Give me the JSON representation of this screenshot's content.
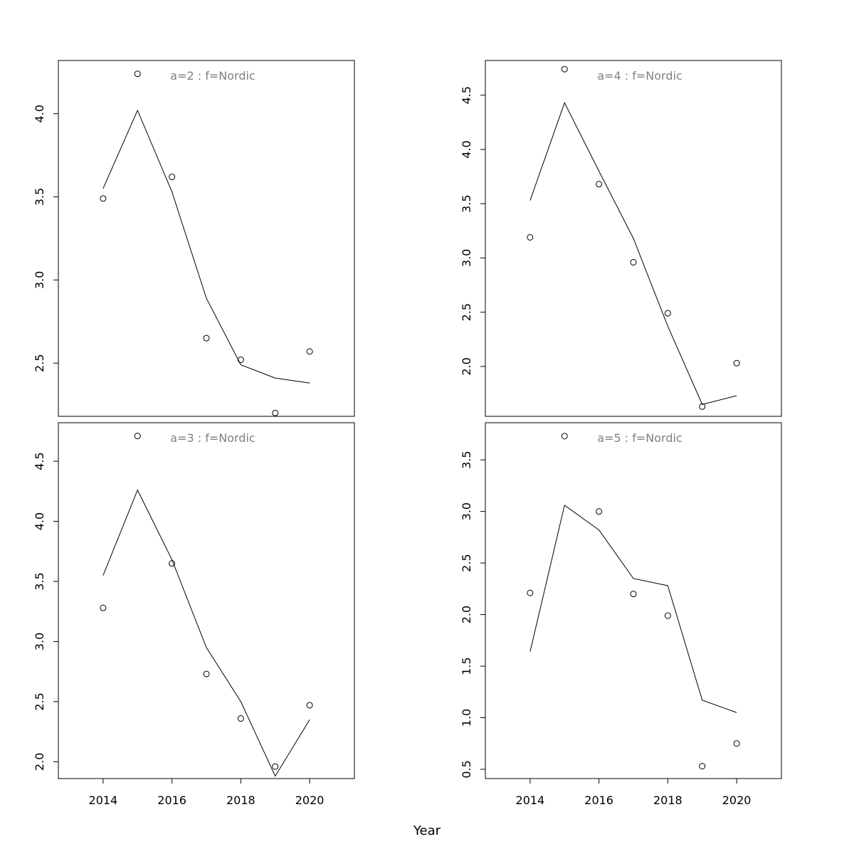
{
  "chart_data": [
    {
      "type": "line",
      "title": "a=2  :  f=Nordic",
      "x": [
        2014,
        2015,
        2016,
        2017,
        2018,
        2019,
        2020
      ],
      "series": [
        {
          "role": "observed",
          "style": "points",
          "values": [
            3.49,
            4.24,
            3.62,
            2.65,
            2.52,
            2.2,
            2.57
          ]
        },
        {
          "role": "fitted",
          "style": "line",
          "values": [
            3.55,
            4.02,
            3.53,
            2.89,
            2.49,
            2.41,
            2.38
          ]
        }
      ],
      "xlim": [
        2012.7,
        2021.3
      ],
      "ylim": [
        2.18,
        4.32
      ],
      "yticks": [
        2.5,
        3.0,
        3.5,
        4.0
      ],
      "ytick_labels": [
        "2.5",
        "3.0",
        "3.5",
        "4.0"
      ],
      "xticks": [],
      "xtick_labels": [],
      "grid": false
    },
    {
      "type": "line",
      "title": "a=4  :  f=Nordic",
      "x": [
        2014,
        2015,
        2016,
        2017,
        2018,
        2019,
        2020
      ],
      "series": [
        {
          "role": "observed",
          "style": "points",
          "values": [
            3.19,
            4.74,
            3.68,
            2.96,
            2.49,
            1.63,
            2.03
          ]
        },
        {
          "role": "fitted",
          "style": "line",
          "values": [
            3.53,
            4.43,
            3.8,
            3.18,
            2.37,
            1.65,
            1.73
          ]
        }
      ],
      "xlim": [
        2012.7,
        2021.3
      ],
      "ylim": [
        1.54,
        4.82
      ],
      "yticks": [
        2.0,
        2.5,
        3.0,
        3.5,
        4.0,
        4.5
      ],
      "ytick_labels": [
        "2.0",
        "2.5",
        "3.0",
        "3.5",
        "4.0",
        "4.5"
      ],
      "xticks": [],
      "xtick_labels": [],
      "grid": false
    },
    {
      "type": "line",
      "title": "a=3  :  f=Nordic",
      "x": [
        2014,
        2015,
        2016,
        2017,
        2018,
        2019,
        2020
      ],
      "series": [
        {
          "role": "observed",
          "style": "points",
          "values": [
            3.28,
            4.71,
            3.65,
            2.73,
            2.36,
            1.96,
            2.47
          ]
        },
        {
          "role": "fitted",
          "style": "line",
          "values": [
            3.55,
            4.26,
            3.68,
            2.95,
            2.5,
            1.88,
            2.35
          ]
        }
      ],
      "xlim": [
        2012.7,
        2021.3
      ],
      "ylim": [
        1.86,
        4.82
      ],
      "yticks": [
        2.0,
        2.5,
        3.0,
        3.5,
        4.0,
        4.5
      ],
      "ytick_labels": [
        "2.0",
        "2.5",
        "3.0",
        "3.5",
        "4.0",
        "4.5"
      ],
      "xticks": [
        2014,
        2016,
        2018,
        2020
      ],
      "xtick_labels": [
        "2014",
        "2016",
        "2018",
        "2020"
      ],
      "grid": false
    },
    {
      "type": "line",
      "title": "a=5  :  f=Nordic",
      "x": [
        2014,
        2015,
        2016,
        2017,
        2018,
        2019,
        2020
      ],
      "series": [
        {
          "role": "observed",
          "style": "points",
          "values": [
            2.21,
            3.73,
            3.0,
            2.2,
            1.99,
            0.53,
            0.75
          ]
        },
        {
          "role": "fitted",
          "style": "line",
          "values": [
            1.64,
            3.06,
            2.82,
            2.35,
            2.28,
            1.17,
            1.05
          ]
        }
      ],
      "xlim": [
        2012.7,
        2021.3
      ],
      "ylim": [
        0.41,
        3.86
      ],
      "yticks": [
        0.5,
        1.0,
        1.5,
        2.0,
        2.5,
        3.0,
        3.5
      ],
      "ytick_labels": [
        "0.5",
        "1.0",
        "1.5",
        "2.0",
        "2.5",
        "3.0",
        "3.5"
      ],
      "xticks": [
        2014,
        2016,
        2018,
        2020
      ],
      "xtick_labels": [
        "2014",
        "2016",
        "2018",
        "2020"
      ],
      "grid": false
    }
  ],
  "xlabel": "Year"
}
